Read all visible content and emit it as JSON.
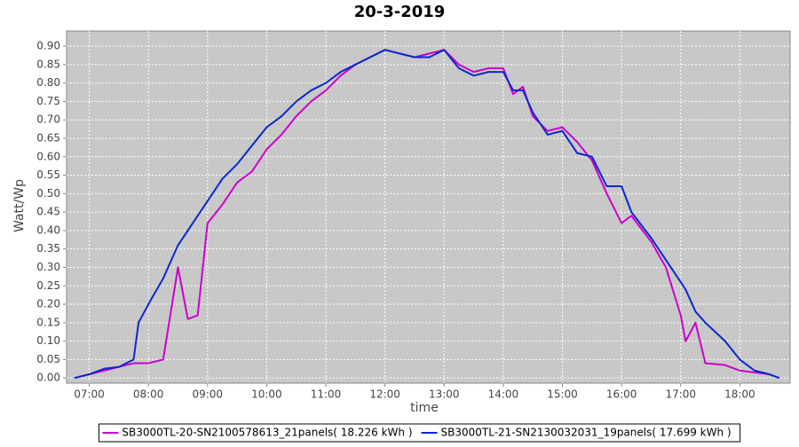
{
  "chart_data": {
    "type": "line",
    "title": "20-3-2019",
    "x_label": "time",
    "y_label": "Watt/Wp",
    "x": [
      "06:45",
      "07:00",
      "07:15",
      "07:30",
      "07:45",
      "07:50",
      "08:00",
      "08:15",
      "08:30",
      "08:40",
      "08:50",
      "09:00",
      "09:15",
      "09:30",
      "09:45",
      "10:00",
      "10:15",
      "10:30",
      "10:45",
      "11:00",
      "11:15",
      "11:30",
      "11:45",
      "12:00",
      "12:15",
      "12:30",
      "12:45",
      "13:00",
      "13:15",
      "13:30",
      "13:45",
      "14:00",
      "14:10",
      "14:20",
      "14:30",
      "14:45",
      "15:00",
      "15:15",
      "15:30",
      "15:45",
      "16:00",
      "16:10",
      "16:30",
      "16:45",
      "17:00",
      "17:05",
      "17:15",
      "17:25",
      "17:45",
      "18:00",
      "18:15",
      "18:30",
      "18:40"
    ],
    "series": [
      {
        "name": "SB3000TL-20-SN2100578613_21panels( 18.226 kWh )",
        "color": "#cc00cc",
        "values": [
          0.0,
          0.01,
          0.02,
          0.03,
          0.04,
          0.04,
          0.04,
          0.05,
          0.3,
          0.16,
          0.17,
          0.42,
          0.47,
          0.53,
          0.56,
          0.62,
          0.66,
          0.71,
          0.75,
          0.78,
          0.82,
          0.85,
          0.87,
          0.89,
          0.88,
          0.87,
          0.88,
          0.89,
          0.85,
          0.83,
          0.84,
          0.84,
          0.77,
          0.79,
          0.71,
          0.67,
          0.68,
          0.64,
          0.59,
          0.5,
          0.42,
          0.44,
          0.37,
          0.3,
          0.17,
          0.1,
          0.15,
          0.04,
          0.035,
          0.02,
          0.015,
          0.01,
          0.0
        ]
      },
      {
        "name": "SB3000TL-21-SN2130032031_19panels( 17.699 kWh )",
        "color": "#0a28cc",
        "values": [
          0.0,
          0.01,
          0.025,
          0.03,
          0.05,
          0.15,
          0.2,
          0.27,
          0.36,
          0.4,
          0.44,
          0.48,
          0.54,
          0.58,
          0.63,
          0.68,
          0.71,
          0.75,
          0.78,
          0.8,
          0.83,
          0.85,
          0.87,
          0.89,
          0.88,
          0.87,
          0.87,
          0.89,
          0.84,
          0.82,
          0.83,
          0.83,
          0.78,
          0.78,
          0.72,
          0.66,
          0.67,
          0.61,
          0.6,
          0.52,
          0.52,
          0.45,
          0.38,
          0.32,
          0.26,
          0.24,
          0.18,
          0.15,
          0.1,
          0.05,
          0.02,
          0.01,
          0.0
        ]
      }
    ],
    "xlim": [
      "06:37",
      "18:51"
    ],
    "xticks": [
      "07:00",
      "08:00",
      "09:00",
      "10:00",
      "11:00",
      "12:00",
      "13:00",
      "14:00",
      "15:00",
      "16:00",
      "17:00",
      "18:00"
    ],
    "ylim": [
      -0.014,
      0.941
    ],
    "yticks": [
      {
        "value": 0,
        "label": "0.00"
      },
      {
        "value": 0.05,
        "label": "0.05"
      },
      {
        "value": 0.1,
        "label": "0.10"
      },
      {
        "value": 0.15,
        "label": "0.15"
      },
      {
        "value": 0.2,
        "label": "0.20"
      },
      {
        "value": 0.25,
        "label": "0.25"
      },
      {
        "value": 0.3,
        "label": "0.30"
      },
      {
        "value": 0.35,
        "label": "0.35"
      },
      {
        "value": 0.4,
        "label": "0.40"
      },
      {
        "value": 0.45,
        "label": "0.45"
      },
      {
        "value": 0.5,
        "label": "0.50"
      },
      {
        "value": 0.55,
        "label": "0.55"
      },
      {
        "value": 0.6,
        "label": "0.60"
      },
      {
        "value": 0.65,
        "label": "0.65"
      },
      {
        "value": 0.7,
        "label": "0.70"
      },
      {
        "value": 0.75,
        "label": "0.75"
      },
      {
        "value": 0.8,
        "label": "0.80"
      },
      {
        "value": 0.85,
        "label": "0.85"
      },
      {
        "value": 0.9,
        "label": "0.90"
      }
    ],
    "grid": true,
    "legend": "bottom"
  }
}
